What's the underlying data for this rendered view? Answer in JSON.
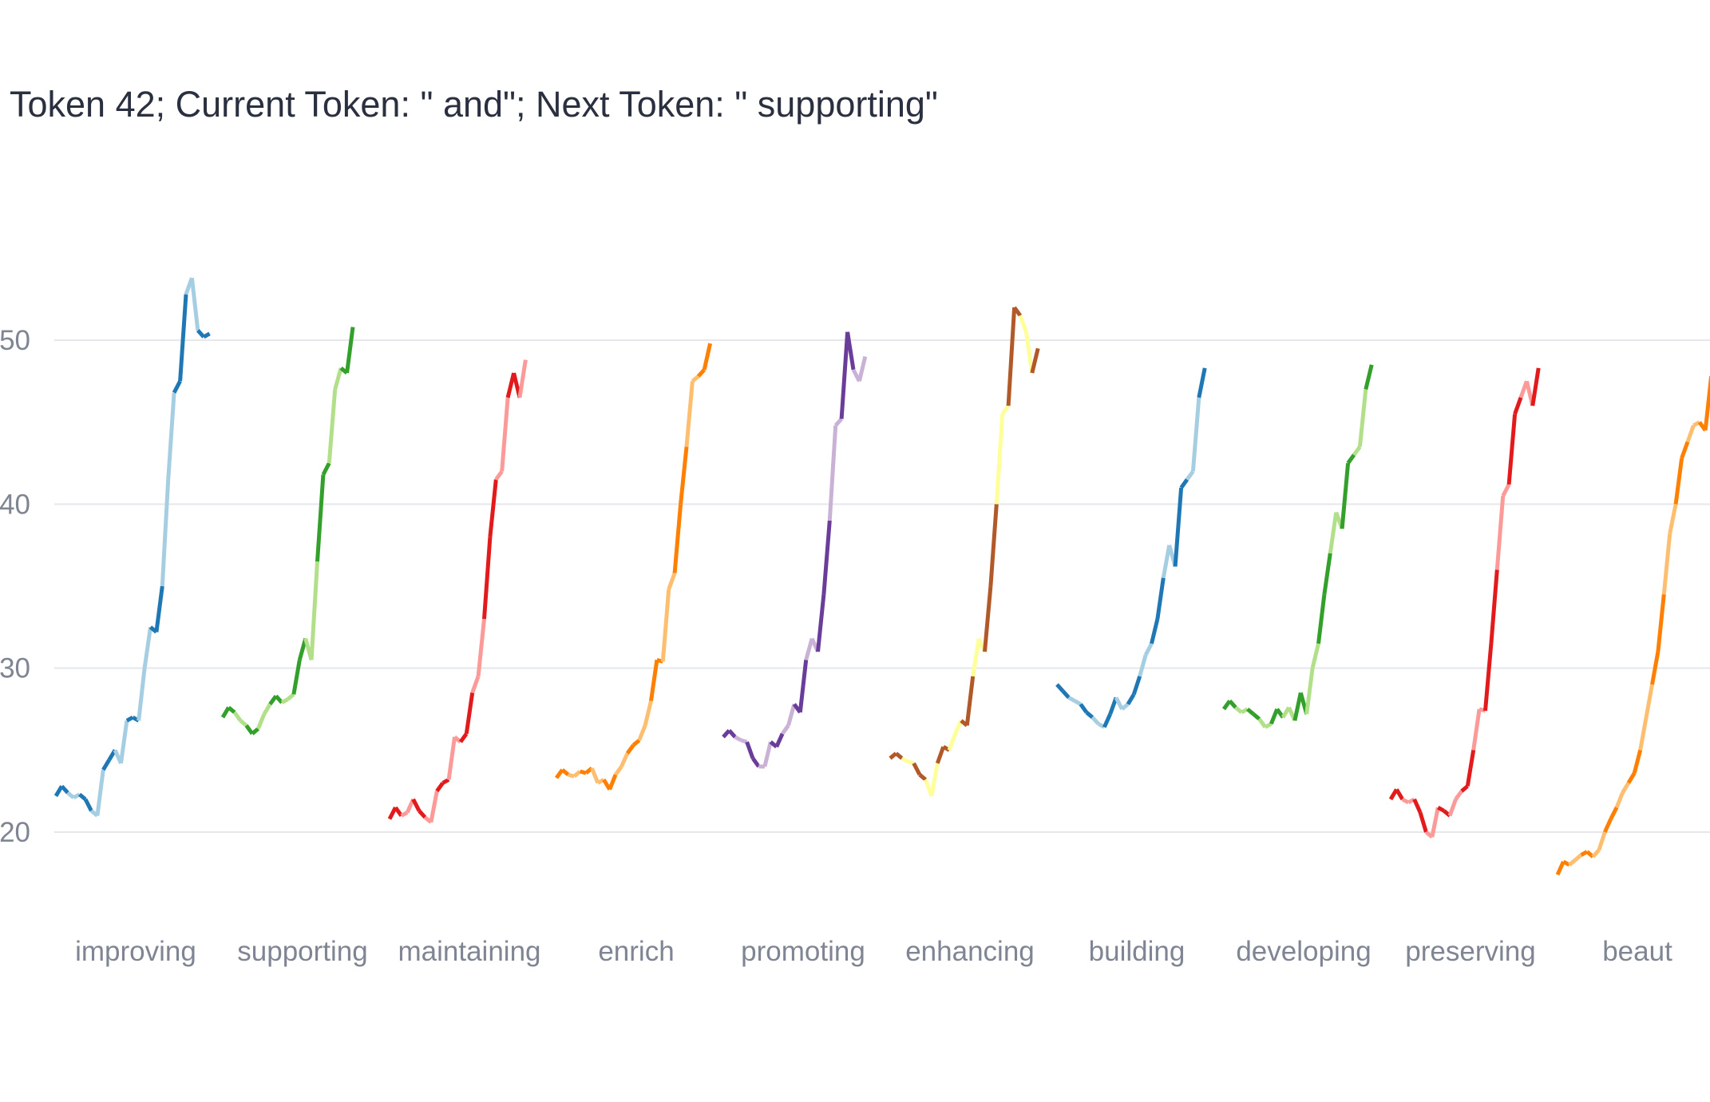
{
  "chart_data": {
    "type": "line",
    "title": "Token 42; Current Token: \" and\"; Next Token: \" supporting\"",
    "yticks": [
      20,
      30,
      40,
      50
    ],
    "ylim": [
      14,
      57
    ],
    "grid": true,
    "categories": [
      {
        "label": "improving",
        "colors": [
          "#1f78b4",
          "#a6cee3"
        ],
        "values": [
          22.2,
          22.8,
          22.4,
          22.1,
          22.3,
          22.0,
          21.3,
          21.0,
          23.8,
          24.4,
          25.0,
          24.2,
          26.8,
          27.0,
          26.8,
          30.0,
          32.5,
          32.2,
          35.0,
          41.5,
          46.8,
          47.5,
          52.8,
          53.8,
          50.6,
          50.2,
          50.4
        ]
      },
      {
        "label": "supporting",
        "colors": [
          "#33a02c",
          "#b2df8a"
        ],
        "values": [
          27.0,
          27.6,
          27.3,
          26.8,
          26.5,
          26.0,
          26.3,
          27.2,
          27.8,
          28.3,
          27.9,
          28.1,
          28.4,
          30.5,
          31.8,
          30.5,
          36.5,
          41.8,
          42.5,
          47.0,
          48.3,
          48.0,
          50.8
        ]
      },
      {
        "label": "maintaining",
        "colors": [
          "#e31a1c",
          "#fb9a99"
        ],
        "values": [
          20.8,
          21.5,
          21.0,
          21.2,
          22.0,
          21.3,
          20.9,
          20.6,
          22.5,
          23.0,
          23.2,
          25.8,
          25.5,
          26.0,
          28.5,
          29.5,
          33.0,
          38.0,
          41.5,
          42.0,
          46.5,
          48.0,
          46.5,
          48.8
        ]
      },
      {
        "label": "enrich",
        "colors": [
          "#ff7f00",
          "#fdbf6f"
        ],
        "values": [
          23.3,
          23.8,
          23.5,
          23.4,
          23.7,
          23.6,
          23.9,
          23.0,
          23.2,
          22.6,
          23.5,
          24.0,
          24.8,
          25.3,
          25.6,
          26.5,
          28.0,
          30.5,
          30.4,
          34.8,
          35.8,
          40.0,
          43.5,
          47.5,
          47.8,
          48.2,
          49.8
        ]
      },
      {
        "label": "promoting",
        "colors": [
          "#6a3d9a",
          "#cab2d6"
        ],
        "values": [
          25.8,
          26.2,
          25.8,
          25.6,
          25.5,
          24.5,
          24.0,
          24.0,
          25.5,
          25.2,
          26.0,
          26.5,
          27.8,
          27.3,
          30.5,
          31.8,
          31.0,
          34.5,
          39.0,
          44.8,
          45.2,
          50.5,
          48.2,
          47.5,
          49.0
        ]
      },
      {
        "label": "enhancing",
        "colors": [
          "#b15928",
          "#ffff99"
        ],
        "values": [
          24.5,
          24.8,
          24.5,
          24.3,
          24.2,
          23.5,
          23.2,
          22.2,
          24.2,
          25.2,
          25.0,
          26.0,
          26.8,
          26.5,
          29.5,
          31.8,
          31.0,
          35.0,
          40.0,
          45.5,
          46.0,
          52.0,
          51.5,
          50.5,
          48.0,
          49.5
        ]
      },
      {
        "label": "building",
        "colors": [
          "#1f78b4",
          "#a6cee3"
        ],
        "values": [
          29.0,
          28.6,
          28.2,
          28.0,
          27.8,
          27.3,
          27.0,
          26.6,
          26.4,
          27.2,
          28.2,
          27.5,
          27.8,
          28.4,
          29.5,
          30.8,
          31.5,
          33.0,
          35.5,
          37.5,
          36.2,
          41.0,
          41.5,
          42.0,
          46.5,
          48.3
        ]
      },
      {
        "label": "developing",
        "colors": [
          "#33a02c",
          "#b2df8a"
        ],
        "values": [
          27.5,
          28.0,
          27.6,
          27.3,
          27.5,
          27.2,
          26.9,
          26.4,
          26.6,
          27.5,
          27.0,
          27.6,
          26.8,
          28.5,
          27.2,
          30.0,
          31.5,
          34.5,
          37.0,
          39.5,
          38.5,
          42.5,
          43.0,
          43.5,
          47.0,
          48.5
        ]
      },
      {
        "label": "preserving",
        "colors": [
          "#e31a1c",
          "#fb9a99"
        ],
        "values": [
          22.0,
          22.6,
          22.0,
          21.8,
          22.0,
          21.2,
          20.0,
          19.7,
          21.5,
          21.3,
          21.0,
          22.0,
          22.5,
          22.8,
          25.0,
          27.5,
          27.4,
          31.5,
          36.0,
          40.5,
          41.2,
          45.5,
          46.5,
          47.5,
          46.0,
          48.3
        ]
      },
      {
        "label": "beaut",
        "colors": [
          "#ff7f00",
          "#fdbf6f"
        ],
        "values": [
          17.4,
          18.2,
          18.0,
          18.3,
          18.6,
          18.8,
          18.5,
          18.9,
          20.0,
          20.8,
          21.5,
          22.4,
          23.0,
          23.6,
          25.0,
          27.0,
          29.0,
          31.0,
          34.5,
          38.2,
          40.0,
          42.8,
          43.8,
          44.8,
          45.0,
          44.5,
          47.8
        ]
      }
    ]
  }
}
